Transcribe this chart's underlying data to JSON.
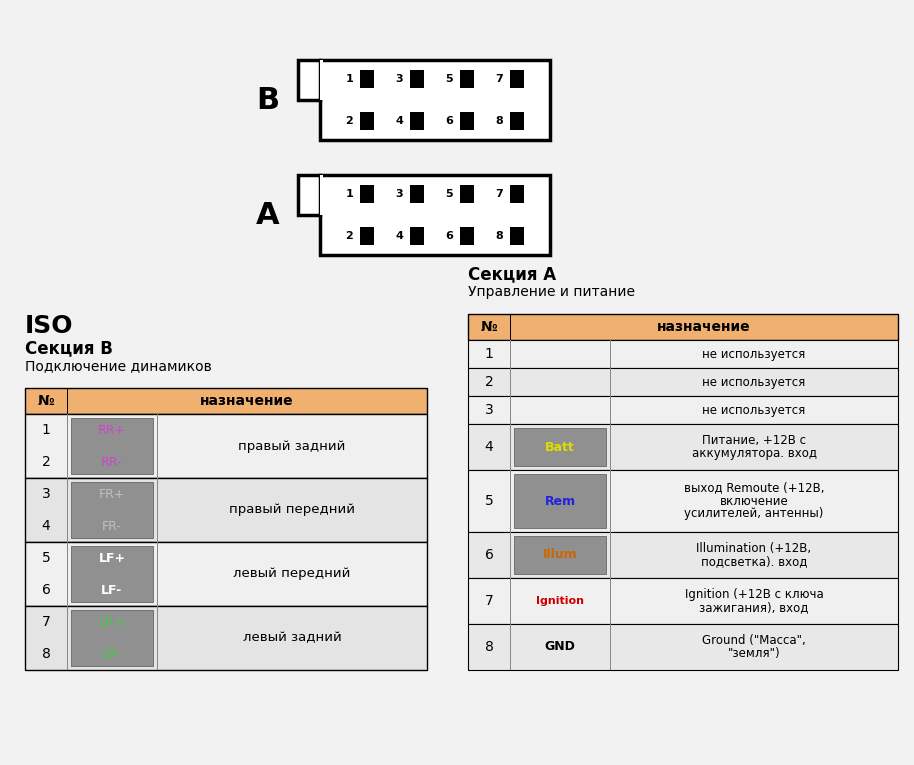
{
  "bg_color": "#f2f2f2",
  "title_iso": "ISO",
  "section_b_title": "Секция B",
  "section_b_subtitle": "Подключение динамиков",
  "section_a_title": "Секция A",
  "section_a_subtitle": "Управление и питание",
  "header_color": "#f0b070",
  "cell_bg_gray": "#909090",
  "table_b_rows": [
    {
      "no": "1",
      "pin": "RR+",
      "pin_color": "#cc44cc",
      "pin_bg": "gray",
      "description": "правый задний",
      "group": 0
    },
    {
      "no": "2",
      "pin": "RR-",
      "pin_color": "#cc44cc",
      "pin_bg": "gray",
      "description": null,
      "group": 0
    },
    {
      "no": "3",
      "pin": "FR+",
      "pin_color": "#c0c0c0",
      "pin_bg": "gray",
      "description": "правый передний",
      "group": 1
    },
    {
      "no": "4",
      "pin": "FR-",
      "pin_color": "#c0c0c0",
      "pin_bg": "gray",
      "description": null,
      "group": 1
    },
    {
      "no": "5",
      "pin": "LF+",
      "pin_color": "#ffffff",
      "pin_bg": "gray",
      "description": "левый передний",
      "group": 2
    },
    {
      "no": "6",
      "pin": "LF-",
      "pin_color": "#ffffff",
      "pin_bg": "gray",
      "description": null,
      "group": 2
    },
    {
      "no": "7",
      "pin": "LR+",
      "pin_color": "#44cc44",
      "pin_bg": "gray",
      "description": "левый задний",
      "group": 3
    },
    {
      "no": "8",
      "pin": "LR-",
      "pin_color": "#44cc44",
      "pin_bg": "gray",
      "description": null,
      "group": 3
    }
  ],
  "table_a_rows": [
    {
      "no": "1",
      "pin": "",
      "pin_color": "#000000",
      "pin_bg": "white",
      "description": "не используется"
    },
    {
      "no": "2",
      "pin": "",
      "pin_color": "#000000",
      "pin_bg": "white",
      "description": "не используется"
    },
    {
      "no": "3",
      "pin": "",
      "pin_color": "#000000",
      "pin_bg": "white",
      "description": "не используется"
    },
    {
      "no": "4",
      "pin": "Batt",
      "pin_color": "#dddd00",
      "pin_bg": "gray",
      "description": "Питание, +12В с\nаккумулятора. вход"
    },
    {
      "no": "5",
      "pin": "Rem",
      "pin_color": "#2222dd",
      "pin_bg": "gray",
      "description": "выход Remoute (+12В,\nвключение\nусилителей, антенны)"
    },
    {
      "no": "6",
      "pin": "Illum",
      "pin_color": "#cc6600",
      "pin_bg": "gray",
      "description": "Illumination (+12В,\nподсветка). вход"
    },
    {
      "no": "7",
      "pin": "Ignition",
      "pin_color": "#cc0000",
      "pin_bg": "white",
      "description": "Ignition (+12В с ключа\nзажигания), вход"
    },
    {
      "no": "8",
      "pin": "GND",
      "pin_color": "#000000",
      "pin_bg": "white",
      "description": "Ground (\"Масса\",\n\"земля\")"
    }
  ]
}
